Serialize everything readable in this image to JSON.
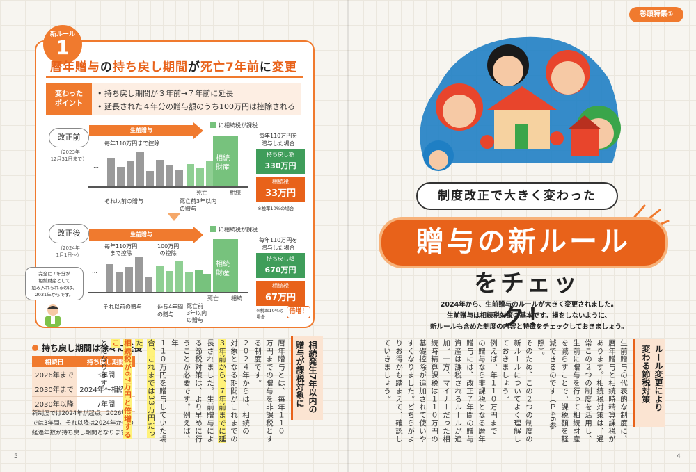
{
  "rule": {
    "badge_label": "新ルール",
    "badge_number": "1",
    "title_parts": [
      "暦年贈与",
      "の",
      "持ち戻し期間",
      "が",
      "死亡7年前",
      "に",
      "変更"
    ],
    "point_label": "変わった\nポイント",
    "points": [
      "持ち戻し期間が３年前→７年前に延長",
      "延長された４年分の贈与額のうち100万円は控除される"
    ]
  },
  "before": {
    "tag": "改正前",
    "note": "（2023年\n12月31日まで）",
    "arrow_label": "生前贈与",
    "legend": "に相続税が課税",
    "deduction": "毎年110万円まで控除",
    "estate": "相続\n財産",
    "death": "死亡",
    "inheritance": "相続",
    "prior_gift": "それ以前の贈与",
    "within": "死亡前3年以内\nの贈与",
    "within_hl": "3年以内",
    "case": "毎年110万円を\n贈与した場合",
    "return_label": "持ち戻し額",
    "return_value": "330万円",
    "tax_label": "相続税",
    "tax_value": "33万円",
    "tax_note": "※税率10%の場合"
  },
  "after": {
    "tag": "改正後",
    "note": "（2024年\n1月1日～）",
    "arrow_label": "生前贈与",
    "legend": "に相続税が課税",
    "deduction_a": "毎年110万円\nまで控除",
    "deduction_b": "100万円\nの控除",
    "estate": "相続\n財産",
    "death": "死亡",
    "inheritance": "相続",
    "prior_gift": "それ以前の贈与",
    "extension": "延長4年間\nの贈与",
    "within": "死亡前\n3年以内\nの贈与",
    "case": "毎年110万円を\n贈与した場合",
    "return_label": "持ち戻し額",
    "return_value": "670万円",
    "tax_label": "相続税",
    "tax_value": "67万円",
    "tax_note": "※税率10%の\n場合",
    "double": "倍増！"
  },
  "speech": "完全に７年分が\n相続財産として\n組み入れられるのは、\n2031年からです。",
  "period_table": {
    "title": "持ち戻し期間は徐々に延長",
    "headers": [
      "相続日",
      "持ち戻し期間"
    ],
    "rows": [
      [
        "2026年まで",
        "3年間"
      ],
      [
        "2030年まで",
        "2024年～相続日"
      ],
      [
        "2030年以降",
        "7年間"
      ]
    ],
    "note": "新制度では2024年が起点。2026年までは3年間、それ以降は2024年からの経過年数が持ち戻し期間となります。"
  },
  "left_article": {
    "heading": "相続発生7年以内の贈与が課税対象に",
    "columns": [
      "暦年贈与とは、毎年１１０",
      "万円までの贈与を非課税とす",
      "る制度です。",
      "２０２４年からは、相続の",
      "対象となる期間がこれまでの",
      "３年前から、７年前までに延",
      "長されました。生前贈与によ",
      "る節税対策は、より早めに行",
      "うことが必要です。例えば、年",
      "１１０万円を贈与していた場",
      "合、これまでは33万円だった",
      "相続税が67万円と倍増するこ",
      "とになります。"
    ]
  },
  "right": {
    "feature_tag": "巻頭特集①",
    "subtitle": "制度改正で大きく変わった",
    "title": "贈与の新ルール",
    "title2": "をチェック！",
    "lead": [
      "2024年から、生前贈与のルールが大きく変更されました。",
      "生前贈与は相続税対策の基本です。損をしないように、",
      "新ルールも含めた制度の内容と特徴をチェックしておきましょう。"
    ],
    "side_title": "ルール変更により\n変わる節税対策",
    "article_columns": [
      "生前贈与の代表的な制度に、",
      "暦年贈与と相続時精算課税が",
      "あります。相続税対策は、通",
      "常この２つの制度を活用し、",
      "生前に贈与を行って相続財産",
      "を減らすことで、課税額を軽",
      "減できるのです（Ｐ46参照）。",
      "そのため、この２つの制度の",
      "新ルールについてよく理解し",
      "ておきましょう。",
      "例えば、年１１０万円まで",
      "の贈与なら非課税となる暦年",
      "贈与には、改正７年間の贈与",
      "資産は課税されるルールが追",
      "加。一方、マイナーだった相",
      "続時精算課税は１１０万円の",
      "基礎控除が追加されて使いや",
      "すくなりました。どちらがよ",
      "りお得かも踏まえて、確認し",
      "ていきましょう。"
    ]
  },
  "page_left": "5",
  "page_right": "4",
  "colors": {
    "accent": "#f07a2e",
    "green": "#77c27d",
    "dark_green": "#3f9d5a"
  }
}
